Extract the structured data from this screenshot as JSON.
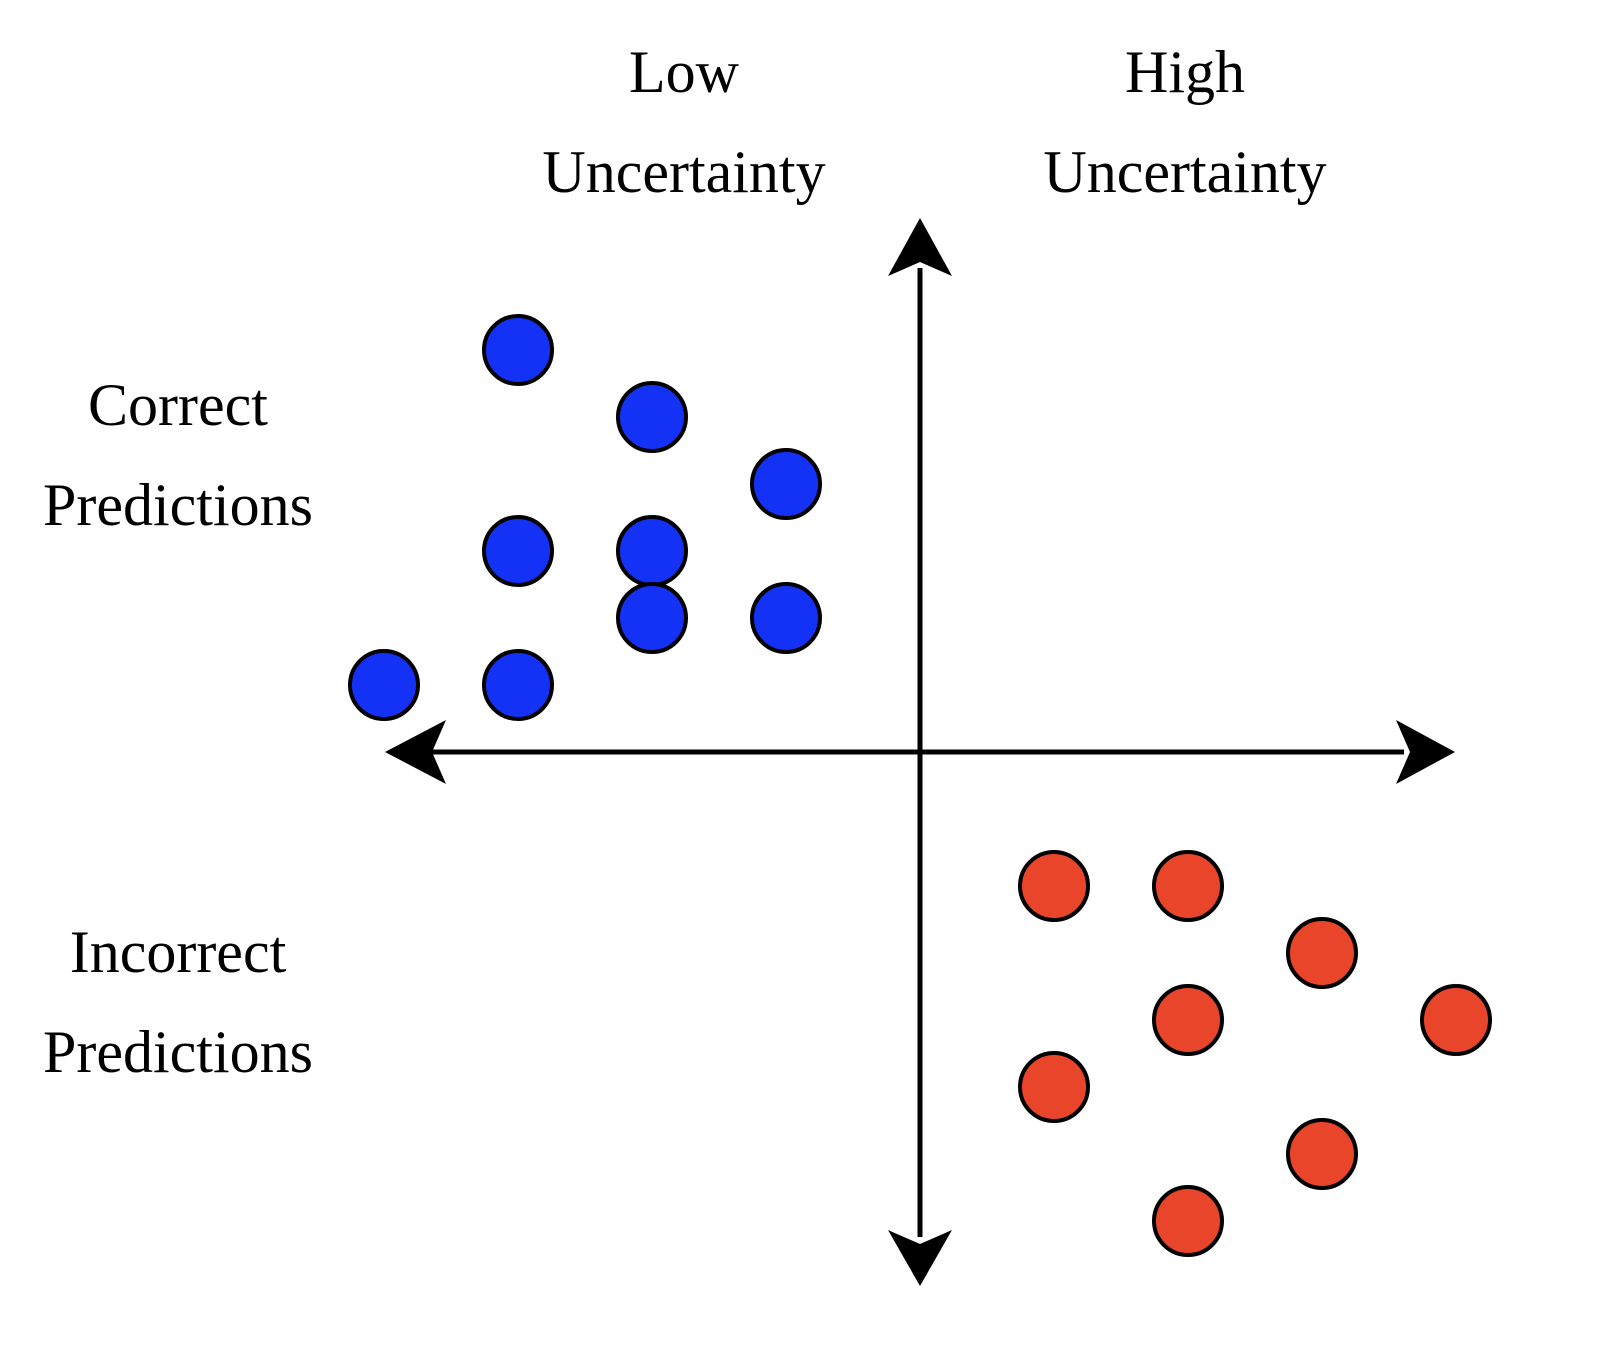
{
  "labels": {
    "column_left": [
      "Low",
      "Uncertainty"
    ],
    "column_right": [
      "High",
      "Uncertainty"
    ],
    "row_top": [
      "Correct",
      "Predictions"
    ],
    "row_bottom": [
      "Incorrect",
      "Predictions"
    ]
  },
  "colors": {
    "axis": "#000000",
    "correct_fill": "#1432F5",
    "incorrect_fill": "#E8452A",
    "marker_stroke": "#000000"
  },
  "groups": [
    {
      "id": "correct",
      "color_key": "correct_fill",
      "points": [
        [
          -3,
          3
        ],
        [
          -2,
          2.5
        ],
        [
          -1,
          2
        ],
        [
          -2,
          1.5
        ],
        [
          -3,
          1.5
        ],
        [
          -1,
          1
        ],
        [
          -3,
          0.5
        ],
        [
          -4,
          0.5
        ],
        [
          -2,
          1
        ]
      ]
    },
    {
      "id": "incorrect",
      "color_key": "incorrect_fill",
      "points": [
        [
          1,
          -1
        ],
        [
          2,
          -1
        ],
        [
          3,
          -1.5
        ],
        [
          2,
          -2
        ],
        [
          4,
          -2
        ],
        [
          1,
          -2.5
        ],
        [
          3,
          -3
        ],
        [
          2,
          -3.5
        ]
      ]
    }
  ]
}
